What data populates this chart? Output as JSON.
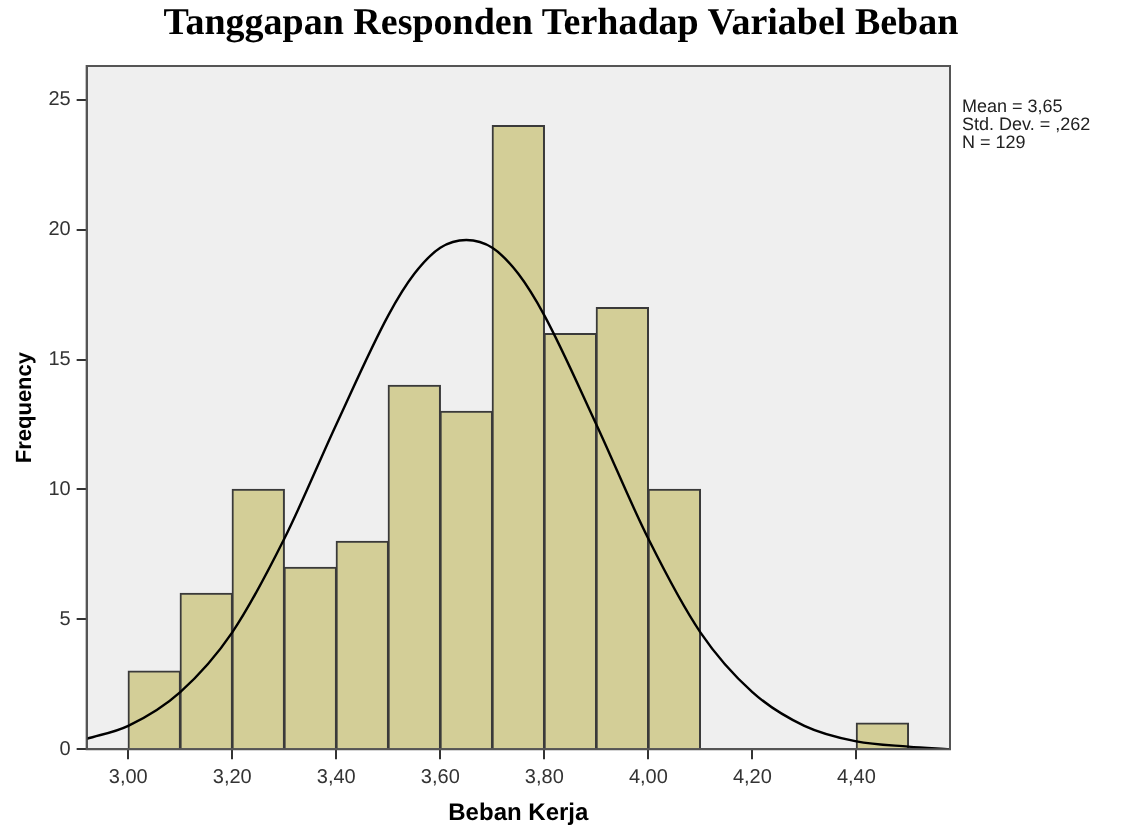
{
  "chart_data": {
    "type": "histogram",
    "title": "Tanggapan Responden Terhadap Variabel Beban",
    "xlabel": "Beban Kerja",
    "ylabel": "Frequency",
    "series": [
      {
        "color": "#d3ce97",
        "bins": [
          3.0,
          3.1,
          3.2,
          3.3,
          3.4,
          3.5,
          3.6,
          3.7,
          3.8,
          3.9,
          4.0,
          4.1,
          4.2,
          4.3,
          4.4,
          4.5
        ],
        "values": [
          3,
          6,
          10,
          7,
          8,
          14,
          13,
          24,
          16,
          17,
          10,
          0,
          0,
          0,
          1
        ]
      },
      {
        "type": "line",
        "color": "#000000",
        "x": [
          2.92,
          3.0,
          3.1,
          3.2,
          3.3,
          3.4,
          3.5,
          3.55,
          3.6,
          3.65,
          3.7,
          3.75,
          3.8,
          3.9,
          4.0,
          4.1,
          4.2,
          4.3,
          4.4,
          4.5,
          4.58
        ],
        "values": [
          0.4,
          0.9,
          2.2,
          4.5,
          8.1,
          12.5,
          16.7,
          18.3,
          19.3,
          19.6,
          19.3,
          18.3,
          16.7,
          12.5,
          8.1,
          4.5,
          2.2,
          0.9,
          0.3,
          0.1,
          0.0
        ]
      }
    ],
    "xlim": [
      2.92,
      4.58
    ],
    "ylim": [
      0,
      26.3
    ],
    "xticks": [
      {
        "value": 3.0,
        "label": "3,00"
      },
      {
        "value": 3.2,
        "label": "3,20"
      },
      {
        "value": 3.4,
        "label": "3,40"
      },
      {
        "value": 3.6,
        "label": "3,60"
      },
      {
        "value": 3.8,
        "label": "3,80"
      },
      {
        "value": 4.0,
        "label": "4,00"
      },
      {
        "value": 4.2,
        "label": "4,20"
      },
      {
        "value": 4.4,
        "label": "4,40"
      }
    ],
    "yticks": [
      0,
      5,
      10,
      15,
      20,
      25
    ],
    "grid": false,
    "legend": false,
    "marker": "none",
    "annotations": [
      "Mean = 3,65",
      "Std. Dev. = ,262",
      "N = 129"
    ]
  }
}
